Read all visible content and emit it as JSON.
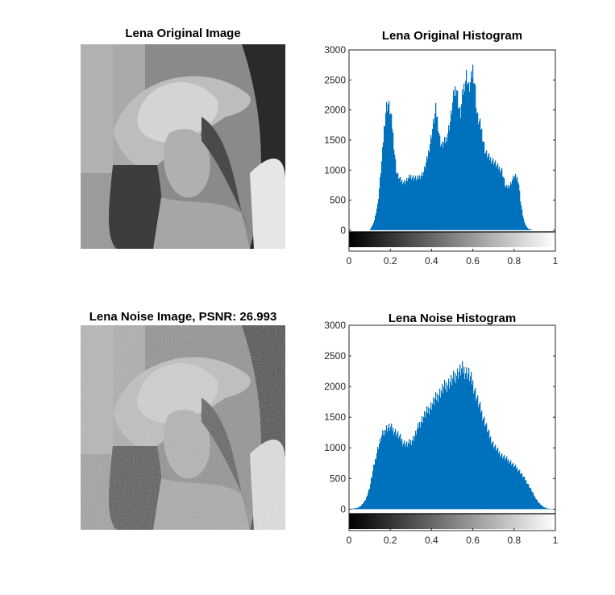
{
  "colors": {
    "bar": "#0072BD",
    "axis": "#262626",
    "background": "#ffffff"
  },
  "panels": {
    "original_image": {
      "title": "Lena Original Image",
      "content_icon": "grayscale-photo-lena"
    },
    "noise_image": {
      "title": "Lena Noise Image, PSNR: 26.993",
      "content_icon": "grayscale-photo-lena-noisy"
    }
  },
  "chart_data": [
    {
      "type": "bar",
      "title": "Lena Original Histogram",
      "xlabel": "",
      "ylabel": "",
      "xlim": [
        0,
        1
      ],
      "ylim": [
        -350,
        3000
      ],
      "xticks": [
        "0",
        "0.2",
        "0.4",
        "0.6",
        "0.8",
        "1"
      ],
      "yticks": [
        "0",
        "500",
        "1000",
        "1500",
        "2000",
        "2500",
        "3000"
      ],
      "colorbar": "grayscale 0 to 1 below axis",
      "x": [
        0.1,
        0.12,
        0.14,
        0.16,
        0.17,
        0.18,
        0.19,
        0.2,
        0.21,
        0.22,
        0.23,
        0.25,
        0.27,
        0.3,
        0.33,
        0.36,
        0.38,
        0.4,
        0.42,
        0.43,
        0.44,
        0.45,
        0.47,
        0.49,
        0.51,
        0.52,
        0.53,
        0.54,
        0.55,
        0.56,
        0.57,
        0.58,
        0.59,
        0.6,
        0.61,
        0.62,
        0.64,
        0.66,
        0.68,
        0.7,
        0.72,
        0.74,
        0.76,
        0.78,
        0.8,
        0.82,
        0.83,
        0.84,
        0.85,
        0.86,
        0.87,
        0.89,
        0.91
      ],
      "values": [
        0,
        120,
        450,
        1200,
        1700,
        2050,
        2100,
        1950,
        1700,
        1300,
        950,
        820,
        800,
        900,
        850,
        950,
        1200,
        1600,
        2000,
        1800,
        1500,
        1400,
        1500,
        1800,
        2300,
        2400,
        2100,
        1900,
        2250,
        2450,
        2600,
        2350,
        2450,
        2700,
        2400,
        1900,
        1700,
        1300,
        1200,
        1150,
        1050,
        1000,
        700,
        750,
        900,
        850,
        500,
        280,
        120,
        60,
        20,
        0,
        0
      ]
    },
    {
      "type": "bar",
      "title": "Lena Noise Histogram",
      "xlabel": "",
      "ylabel": "",
      "xlim": [
        0,
        1
      ],
      "ylim": [
        -350,
        3000
      ],
      "xticks": [
        "0",
        "0.2",
        "0.4",
        "0.6",
        "0.8",
        "1"
      ],
      "yticks": [
        "0",
        "500",
        "1000",
        "1500",
        "2000",
        "2500",
        "3000"
      ],
      "colorbar": "grayscale 0 to 1 below axis",
      "x": [
        0.0,
        0.04,
        0.06,
        0.08,
        0.1,
        0.12,
        0.14,
        0.16,
        0.18,
        0.2,
        0.22,
        0.24,
        0.26,
        0.28,
        0.3,
        0.32,
        0.34,
        0.36,
        0.38,
        0.4,
        0.42,
        0.44,
        0.46,
        0.48,
        0.5,
        0.52,
        0.54,
        0.55,
        0.56,
        0.58,
        0.6,
        0.62,
        0.64,
        0.66,
        0.68,
        0.7,
        0.72,
        0.74,
        0.76,
        0.78,
        0.8,
        0.82,
        0.84,
        0.86,
        0.88,
        0.9,
        0.92,
        0.94,
        0.96,
        1.0
      ],
      "values": [
        0,
        20,
        60,
        150,
        350,
        700,
        1000,
        1200,
        1320,
        1330,
        1280,
        1200,
        1100,
        1050,
        1100,
        1200,
        1380,
        1500,
        1600,
        1700,
        1800,
        1900,
        1980,
        2050,
        2100,
        2200,
        2260,
        2280,
        2260,
        2200,
        2050,
        1800,
        1600,
        1400,
        1200,
        1050,
        950,
        880,
        820,
        780,
        700,
        650,
        550,
        450,
        330,
        200,
        100,
        40,
        10,
        0
      ]
    }
  ]
}
